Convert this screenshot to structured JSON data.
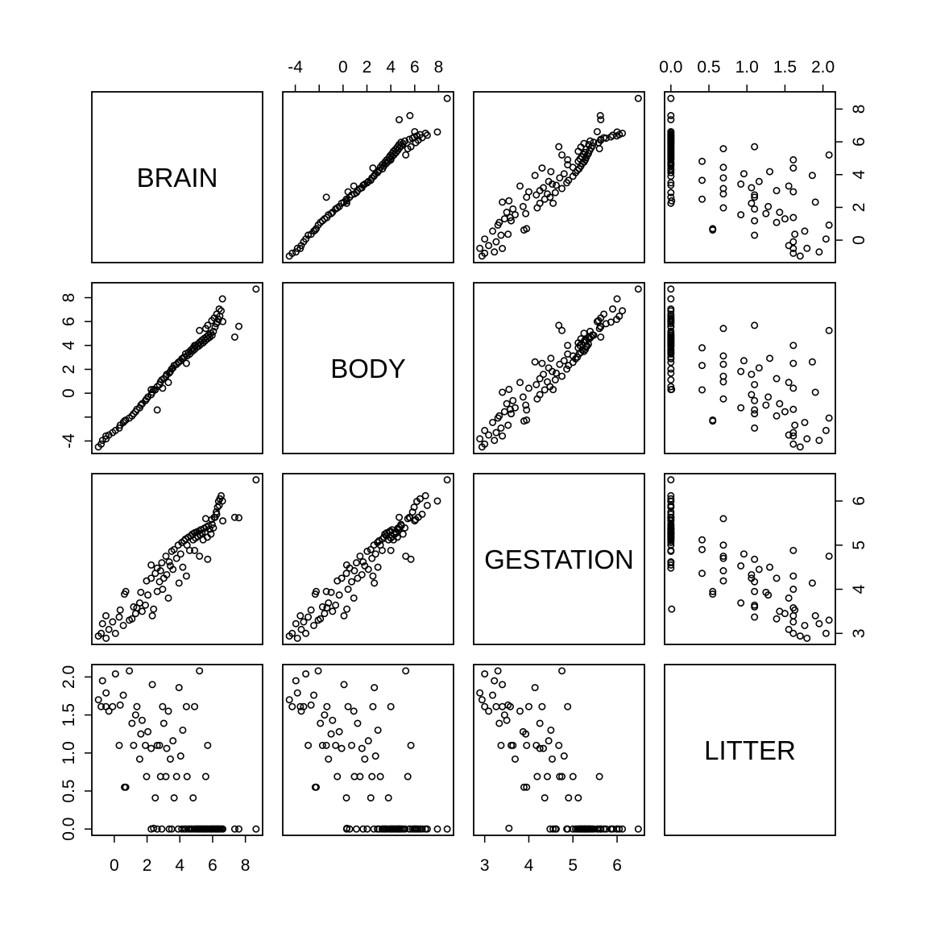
{
  "colors": {
    "background": "#ffffff",
    "foreground": "#000000"
  },
  "chart_data": {
    "type": "scatter",
    "subtype": "scatterplot-matrix",
    "title": "",
    "grid": false,
    "legend": null,
    "marker": {
      "shape": "open-circle"
    },
    "variables": [
      {
        "name": "BRAIN",
        "range": [
          -1.37,
          9.05
        ],
        "ticks": [
          0,
          2,
          4,
          6,
          8
        ],
        "tick_labels": [
          "0",
          "2",
          "4",
          "6",
          "8"
        ]
      },
      {
        "name": "BODY",
        "range": [
          -5.05,
          9.25
        ],
        "ticks": [
          -4,
          -2,
          0,
          2,
          4,
          6,
          8
        ],
        "tick_labels": [
          "-4",
          "",
          "0",
          "2",
          "4",
          "6",
          "8"
        ]
      },
      {
        "name": "GESTATION",
        "range": [
          2.75,
          6.62
        ],
        "ticks": [
          3,
          4,
          5,
          6
        ],
        "tick_labels": [
          "3",
          "4",
          "5",
          "6"
        ]
      },
      {
        "name": "LITTER",
        "range": [
          -0.083,
          2.163
        ],
        "ticks": [
          0,
          0.5,
          1,
          1.5,
          2
        ],
        "tick_labels": [
          "0.0",
          "0.5",
          "1.0",
          "1.5",
          "2.0"
        ]
      }
    ],
    "axes": [
      {
        "var": 1,
        "name": "BODY",
        "side": "top",
        "index": 1
      },
      {
        "var": 3,
        "name": "LITTER",
        "side": "top",
        "index": 3
      },
      {
        "var": 0,
        "name": "BRAIN",
        "side": "bottom",
        "index": 0
      },
      {
        "var": 2,
        "name": "GESTATION",
        "side": "bottom",
        "index": 2
      },
      {
        "var": 1,
        "name": "BODY",
        "side": "left",
        "index": 1
      },
      {
        "var": 3,
        "name": "LITTER",
        "side": "left",
        "index": 3
      },
      {
        "var": 0,
        "name": "BRAIN",
        "side": "right",
        "index": 0
      },
      {
        "var": 2,
        "name": "GESTATION",
        "side": "right",
        "index": 2
      }
    ],
    "point_order": [
      "BRAIN",
      "BODY",
      "GESTATION",
      "LITTER"
    ],
    "points": [
      [
        -0.97,
        -4.5,
        2.94,
        1.7
      ],
      [
        -0.8,
        -4.26,
        3.0,
        1.61
      ],
      [
        -0.72,
        -3.95,
        3.22,
        1.95
      ],
      [
        -0.5,
        -3.82,
        2.89,
        1.79
      ],
      [
        -0.51,
        -3.58,
        3.4,
        1.61
      ],
      [
        -0.33,
        -3.5,
        3.09,
        1.55
      ],
      [
        -0.1,
        -3.3,
        3.26,
        1.61
      ],
      [
        0.07,
        -3.12,
        3.0,
        2.04
      ],
      [
        0.3,
        -2.92,
        3.37,
        1.1
      ],
      [
        0.36,
        -2.68,
        3.53,
        1.63
      ],
      [
        0.55,
        -2.45,
        3.18,
        1.76
      ],
      [
        0.62,
        -2.33,
        3.89,
        0.55
      ],
      [
        0.7,
        -2.25,
        3.95,
        0.55
      ],
      [
        0.92,
        -2.08,
        3.3,
        2.08
      ],
      [
        1.08,
        -1.9,
        3.33,
        1.39
      ],
      [
        1.18,
        -1.72,
        3.6,
        1.1
      ],
      [
        1.3,
        -1.55,
        3.45,
        1.5
      ],
      [
        1.38,
        -1.35,
        3.58,
        1.61
      ],
      [
        1.55,
        -1.22,
        3.69,
        0.92
      ],
      [
        1.62,
        -1.0,
        3.93,
        1.25
      ],
      [
        1.7,
        -0.88,
        3.5,
        1.43
      ],
      [
        1.9,
        -0.62,
        3.64,
        1.1
      ],
      [
        1.97,
        -0.48,
        4.19,
        0.69
      ],
      [
        2.05,
        -0.32,
        3.87,
        1.28
      ],
      [
        2.25,
        -0.12,
        4.25,
        1.06
      ],
      [
        2.32,
        0.08,
        3.4,
        1.9
      ],
      [
        2.5,
        0.28,
        4.36,
        0.41
      ],
      [
        2.4,
        0.32,
        3.55,
        0.01
      ],
      [
        2.62,
        0.55,
        4.48,
        0.0
      ],
      [
        2.76,
        0.72,
        4.17,
        1.1
      ],
      [
        2.82,
        0.95,
        4.42,
        0.69
      ],
      [
        2.9,
        1.12,
        4.6,
        0.0
      ],
      [
        3.02,
        1.22,
        4.25,
        1.39
      ],
      [
        3.15,
        1.42,
        4.75,
        0.69
      ],
      [
        3.2,
        1.58,
        4.33,
        1.06
      ],
      [
        3.35,
        1.68,
        4.62,
        0.0
      ],
      [
        3.42,
        1.82,
        4.53,
        0.92
      ],
      [
        3.5,
        2.02,
        4.86,
        0.0
      ],
      [
        3.58,
        2.12,
        4.45,
        1.16
      ],
      [
        3.65,
        2.32,
        4.9,
        0.41
      ],
      [
        3.8,
        2.42,
        4.7,
        0.69
      ],
      [
        3.9,
        2.58,
        5.0,
        0.0
      ],
      [
        3.95,
        2.62,
        4.14,
        1.86
      ],
      [
        4.05,
        2.72,
        4.8,
        0.96
      ],
      [
        4.12,
        2.88,
        5.06,
        0.0
      ],
      [
        4.18,
        2.92,
        4.5,
        1.3
      ],
      [
        4.26,
        3.02,
        5.1,
        0.0
      ],
      [
        4.35,
        3.3,
        5.14,
        0.0
      ],
      [
        4.44,
        3.12,
        5.0,
        0.69
      ],
      [
        4.52,
        3.42,
        5.18,
        0.0
      ],
      [
        4.6,
        3.28,
        4.88,
        0.0
      ],
      [
        4.68,
        3.62,
        5.21,
        0.0
      ],
      [
        4.76,
        3.5,
        5.25,
        0.0
      ],
      [
        4.81,
        3.8,
        5.12,
        0.41
      ],
      [
        4.9,
        3.66,
        5.28,
        0.0
      ],
      [
        4.96,
        4.0,
        5.16,
        0.0
      ],
      [
        5.04,
        3.86,
        5.3,
        0.0
      ],
      [
        5.1,
        4.12,
        5.2,
        0.0
      ],
      [
        5.16,
        3.95,
        5.32,
        0.0
      ],
      [
        5.22,
        4.28,
        5.24,
        0.0
      ],
      [
        5.28,
        4.1,
        5.35,
        0.0
      ],
      [
        5.35,
        4.44,
        5.27,
        0.0
      ],
      [
        5.42,
        4.22,
        5.12,
        0.0
      ],
      [
        5.48,
        4.58,
        5.38,
        0.0
      ],
      [
        5.55,
        4.4,
        5.3,
        0.0
      ],
      [
        5.62,
        4.72,
        5.41,
        0.0
      ],
      [
        5.68,
        4.55,
        5.18,
        0.0
      ],
      [
        5.75,
        4.88,
        5.44,
        0.0
      ],
      [
        5.82,
        4.68,
        5.36,
        0.0
      ],
      [
        5.9,
        5.02,
        5.25,
        0.0
      ],
      [
        5.97,
        4.85,
        5.47,
        0.0
      ],
      [
        6.05,
        5.18,
        5.39,
        0.0
      ],
      [
        5.58,
        5.42,
        5.6,
        0.69
      ],
      [
        6.15,
        5.55,
        5.63,
        0.0
      ],
      [
        5.7,
        5.68,
        4.68,
        1.1
      ],
      [
        6.22,
        5.82,
        5.75,
        0.0
      ],
      [
        6.3,
        5.95,
        5.86,
        0.0
      ],
      [
        5.95,
        6.08,
        5.58,
        0.0
      ],
      [
        6.36,
        6.18,
        5.99,
        0.0
      ],
      [
        6.1,
        6.3,
        5.63,
        0.0
      ],
      [
        6.44,
        6.45,
        6.05,
        0.0
      ],
      [
        6.25,
        6.62,
        5.7,
        0.0
      ],
      [
        6.52,
        6.9,
        6.12,
        0.0
      ],
      [
        6.6,
        7.9,
        6.0,
        0.0
      ],
      [
        8.65,
        8.72,
        6.48,
        0.0
      ],
      [
        7.6,
        5.6,
        5.62,
        0.0
      ],
      [
        7.35,
        4.7,
        5.63,
        0.0
      ],
      [
        6.4,
        7.05,
        5.9,
        0.0
      ],
      [
        5.2,
        5.25,
        4.75,
        2.08
      ],
      [
        4.9,
        4.0,
        4.88,
        1.61
      ],
      [
        2.25,
        0.3,
        4.55,
        0.0
      ],
      [
        2.95,
        0.42,
        4.0,
        1.61
      ],
      [
        2.62,
        -1.4,
        3.95,
        1.1
      ],
      [
        6.62,
        6.0,
        5.55,
        0.0
      ],
      [
        4.4,
        2.5,
        4.3,
        1.61
      ],
      [
        3.3,
        0.9,
        3.8,
        1.55
      ]
    ]
  }
}
